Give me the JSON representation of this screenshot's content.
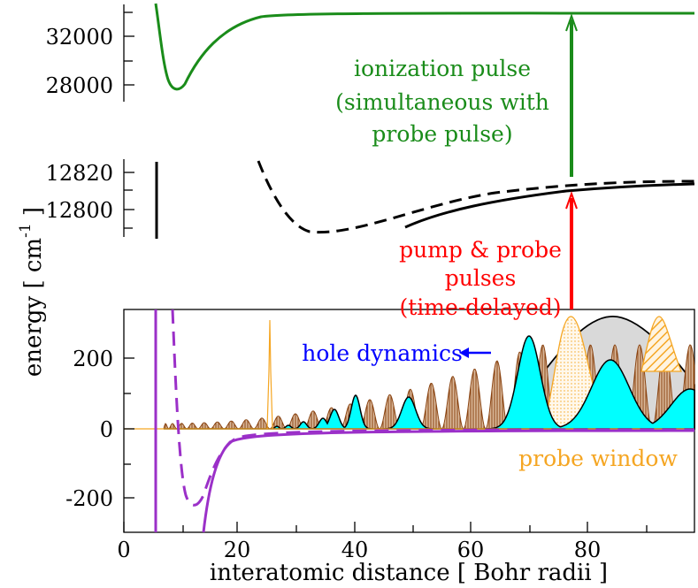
{
  "colors": {
    "green": "#1a8c1a",
    "black": "#000000",
    "red": "#ff0000",
    "blue": "#0000ff",
    "purple": "#9b30c8",
    "orange": "#f5a623",
    "brown": "#8b4513",
    "cyan": "#00ffff",
    "gray": "#d9d9d9"
  },
  "axes": {
    "xlabel": "interatomic distance [ Bohr radii ]",
    "ylabel_main": "energy [ cm",
    "ylabel_sup": "-1",
    "ylabel_tail": " ]",
    "x_ticks": [
      "0",
      "20",
      "40",
      "60",
      "80"
    ],
    "top_ticks": [
      "32000",
      "28000"
    ],
    "mid_ticks": [
      "12820",
      "12800"
    ],
    "bottom_ticks": [
      "200",
      "0",
      "-200"
    ]
  },
  "annotations": {
    "ionization": [
      "ionization pulse",
      "(simultaneous with",
      "probe pulse)"
    ],
    "pump_probe": [
      "pump & probe",
      "pulses",
      "(time-delayed)"
    ],
    "hole_dynamics": "hole dynamics",
    "probe_window": "probe window"
  }
}
